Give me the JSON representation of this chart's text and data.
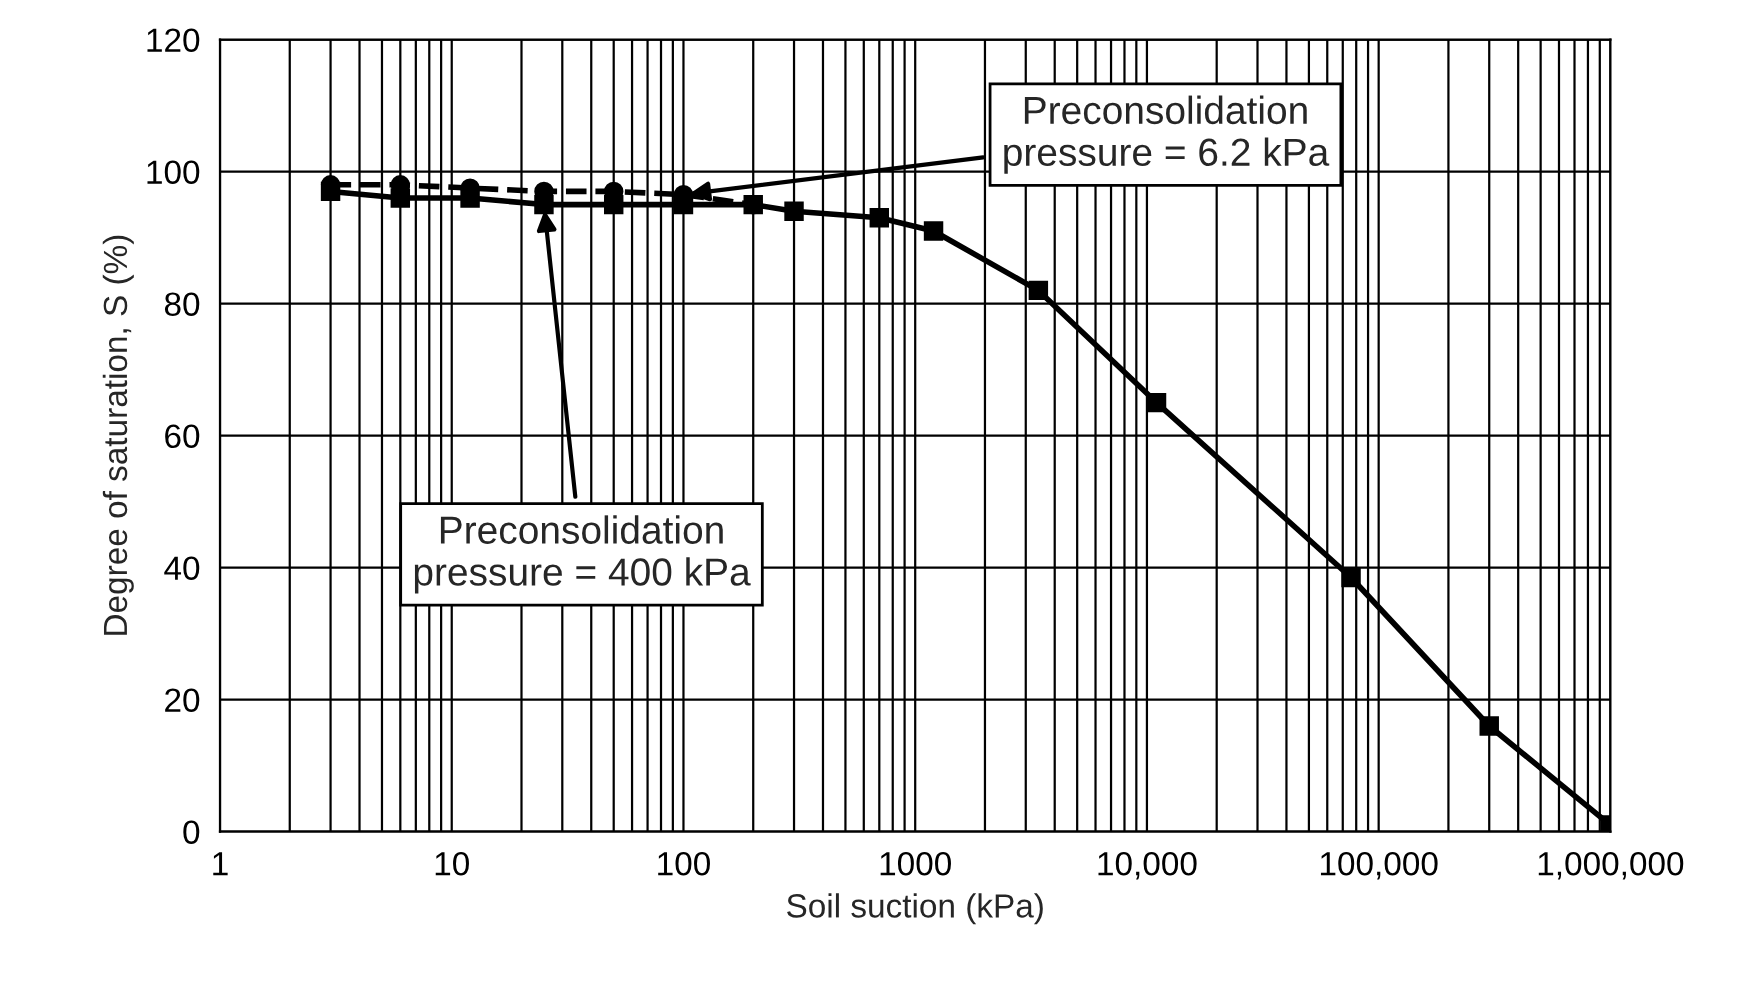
{
  "chart_data": {
    "type": "line",
    "xlabel": "Soil suction (kPa)",
    "ylabel": "Degree of saturation, S (%)",
    "log": "x",
    "grid": true,
    "legend": false,
    "xlim": [
      1,
      1000000
    ],
    "xticks": [
      1,
      10,
      100,
      1000,
      {
        "value": 10000,
        "label": "10,000"
      },
      {
        "value": 100000,
        "label": "100,000"
      },
      {
        "value": 1000000,
        "label": "1,000,000"
      }
    ],
    "ylim": [
      0,
      120
    ],
    "yticks": [
      0,
      20,
      40,
      60,
      80,
      100,
      120
    ],
    "series": [
      {
        "color": "#000000",
        "marker": "square",
        "line_style": "solid",
        "x": [
          3,
          6,
          12,
          25,
          50,
          100,
          200,
          300,
          700,
          1200,
          3400,
          11000,
          76000,
          300000,
          1000000
        ],
        "values": [
          97,
          96,
          96,
          95,
          95,
          95,
          95,
          94,
          93,
          91,
          82,
          65,
          38.5,
          16,
          1
        ]
      },
      {
        "color": "#000000",
        "marker": "circle",
        "line_style": "dashed",
        "x": [
          3,
          6,
          12,
          25,
          50,
          100,
          200
        ],
        "values": [
          98,
          98,
          97.5,
          97,
          97,
          96.5,
          95
        ]
      }
    ],
    "annotations": [
      {
        "text": "Preconsolidation\npressure = 6.2 kPa",
        "x": 100,
        "y": 96.5
      },
      {
        "text": "Preconsolidation\npressure = 400 kPa",
        "x": 25,
        "y": 95
      }
    ]
  }
}
